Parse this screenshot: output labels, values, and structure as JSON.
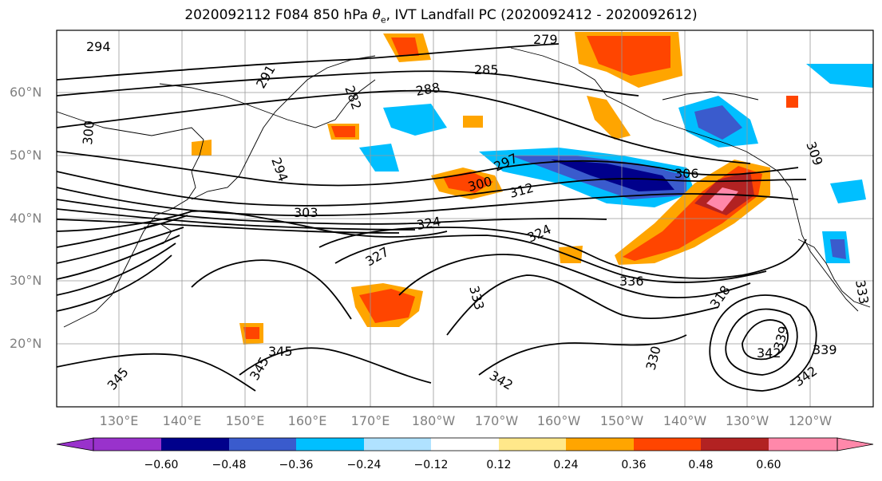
{
  "title": {
    "prefix": "2020092112 F084 850 hPa ",
    "theta": "θ",
    "sub": "e",
    "suffix": ", IVT Landfall PC (2020092412 - 2020092612)"
  },
  "axes": {
    "lat_labels": [
      "60°N",
      "50°N",
      "40°N",
      "30°N",
      "20°N"
    ],
    "lon_labels": [
      "130°E",
      "140°E",
      "150°E",
      "160°E",
      "170°E",
      "180°W",
      "170°W",
      "160°W",
      "150°W",
      "140°W",
      "130°W",
      "120°W"
    ]
  },
  "contour_labels": [
    "294",
    "291",
    "282",
    "279",
    "285",
    "288",
    "300",
    "297",
    "300",
    "312",
    "306",
    "303",
    "324",
    "324",
    "327",
    "336",
    "333",
    "318",
    "339",
    "342",
    "339",
    "345",
    "345",
    "342",
    "342",
    "345",
    "330",
    "333",
    "309",
    "294"
  ],
  "colorbar": {
    "ticks": [
      "−0.60",
      "−0.48",
      "−0.36",
      "−0.24",
      "−0.12",
      "0.12",
      "0.24",
      "0.36",
      "0.48",
      "0.60"
    ],
    "colors": [
      "#9932cc",
      "#00008b",
      "#3a5bcd",
      "#00bfff",
      "#b0e2ff",
      "#ffffff",
      "#ffe88a",
      "#ffa500",
      "#ff4500",
      "#b22222",
      "#ff88aa"
    ]
  }
}
